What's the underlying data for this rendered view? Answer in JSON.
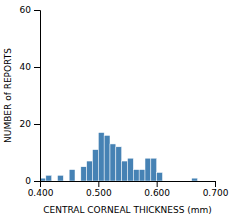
{
  "chart_data": {
    "type": "histogram",
    "bins": [
      0.4,
      0.41,
      0.42,
      0.43,
      0.44,
      0.45,
      0.46,
      0.47,
      0.48,
      0.49,
      0.5,
      0.51,
      0.52,
      0.53,
      0.54,
      0.55,
      0.56,
      0.57,
      0.58,
      0.59,
      0.6,
      0.61,
      0.62,
      0.63,
      0.64,
      0.65,
      0.66,
      0.67,
      0.68,
      0.69,
      0.7
    ],
    "values": [
      1,
      2,
      0,
      2,
      0,
      4,
      0,
      5,
      7,
      11,
      17,
      16,
      13,
      12,
      7,
      8,
      4,
      4,
      8,
      8,
      3,
      0,
      0,
      0,
      0,
      0,
      1,
      0,
      0,
      0
    ],
    "x_label": "CENTRAL CORNEAL THICKNESS (mm)",
    "y_label": "NUMBER of REPORTS",
    "xlim": [
      0.4,
      0.7
    ],
    "ylim": [
      0,
      60
    ],
    "xticks": [
      {
        "value": 0.4,
        "label": "0.400"
      },
      {
        "value": 0.5,
        "label": "0.500"
      },
      {
        "value": 0.6,
        "label": "0.600"
      },
      {
        "value": 0.7,
        "label": "0.700"
      }
    ],
    "yticks": [
      0,
      20,
      40,
      60
    ],
    "grid": false
  }
}
